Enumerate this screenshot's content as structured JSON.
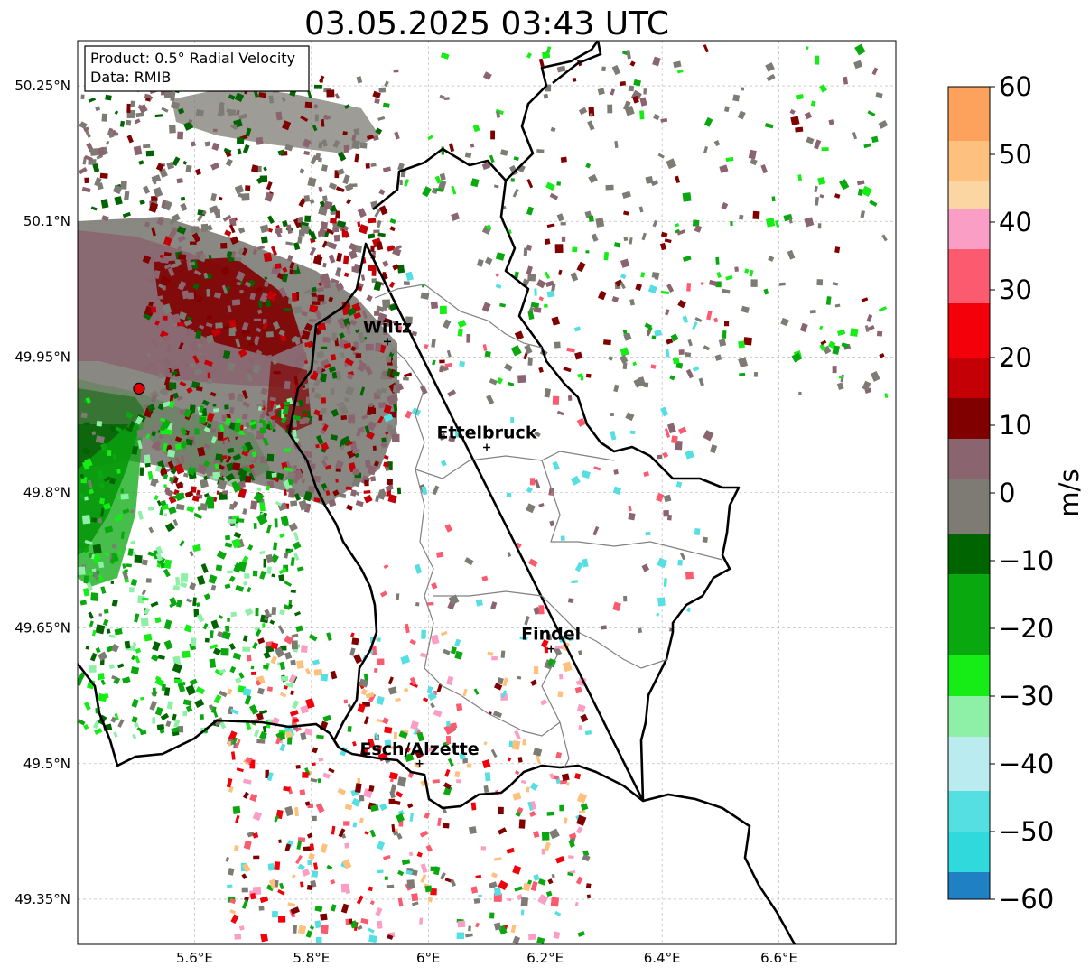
{
  "title": "03.05.2025 03:43 UTC",
  "info_box": {
    "product": "Product: 0.5° Radial Velocity",
    "data": "Data: RMIB"
  },
  "map": {
    "lon_range": [
      5.4,
      6.8
    ],
    "lat_range": [
      49.3,
      50.3
    ],
    "x_ticks": [
      "5.6°E",
      "5.8°E",
      "6°E",
      "6.2°E",
      "6.4°E",
      "6.6°E"
    ],
    "x_tick_values": [
      5.6,
      5.8,
      6.0,
      6.2,
      6.4,
      6.6
    ],
    "y_ticks": [
      "50.25°N",
      "50.1°N",
      "49.95°N",
      "49.8°N",
      "49.65°N",
      "49.5°N",
      "49.35°N"
    ],
    "y_tick_values": [
      50.25,
      50.1,
      49.95,
      49.8,
      49.65,
      49.5,
      49.35
    ],
    "radar_site": {
      "lon": 5.505,
      "lat": 49.915
    },
    "cities": [
      {
        "name": "Wiltz",
        "lon": 5.93,
        "lat": 49.967
      },
      {
        "name": "Ettelbruck",
        "lon": 6.1,
        "lat": 49.85
      },
      {
        "name": "Findel",
        "lon": 6.21,
        "lat": 49.627
      },
      {
        "name": "Esch/Alzette",
        "lon": 5.985,
        "lat": 49.5
      }
    ]
  },
  "colorbar": {
    "label": "m/s",
    "vmin": -60,
    "vmax": 60,
    "ticks": [
      "60",
      "50",
      "40",
      "30",
      "20",
      "10",
      "0",
      "−10",
      "−20",
      "−30",
      "−40",
      "−50",
      "−60"
    ],
    "tick_values": [
      60,
      50,
      40,
      30,
      20,
      10,
      0,
      -10,
      -20,
      -30,
      -40,
      -50,
      -60
    ],
    "bands": [
      {
        "from": 52,
        "to": 60,
        "color": "#fda25c"
      },
      {
        "from": 46,
        "to": 52,
        "color": "#fdc17d"
      },
      {
        "from": 42,
        "to": 46,
        "color": "#fbd6a3"
      },
      {
        "from": 36,
        "to": 42,
        "color": "#fb9ec5"
      },
      {
        "from": 28,
        "to": 36,
        "color": "#fb5a6f"
      },
      {
        "from": 20,
        "to": 28,
        "color": "#f3000a"
      },
      {
        "from": 14,
        "to": 20,
        "color": "#c40006"
      },
      {
        "from": 8,
        "to": 14,
        "color": "#800000"
      },
      {
        "from": 2,
        "to": 8,
        "color": "#8a6570"
      },
      {
        "from": -6,
        "to": 2,
        "color": "#7d7b74"
      },
      {
        "from": -12,
        "to": -6,
        "color": "#006400"
      },
      {
        "from": -24,
        "to": -12,
        "color": "#09a80f"
      },
      {
        "from": -30,
        "to": -24,
        "color": "#16ed16"
      },
      {
        "from": -36,
        "to": -30,
        "color": "#8ef0a6"
      },
      {
        "from": -44,
        "to": -36,
        "color": "#b9ebef"
      },
      {
        "from": -50,
        "to": -44,
        "color": "#56dfe2"
      },
      {
        "from": -56,
        "to": -50,
        "color": "#2fd9dc"
      },
      {
        "from": -60,
        "to": -56,
        "color": "#2080c4"
      }
    ]
  }
}
